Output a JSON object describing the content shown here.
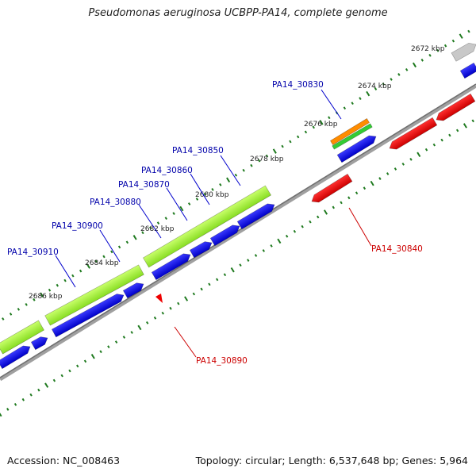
{
  "title": "Pseudomonas aeruginosa UCBPP-PA14, complete genome",
  "footer": {
    "accession": "Accession: NC_008463",
    "topology": "Topology: circular; Length: 6,537,648 bp; Genes: 5,964"
  },
  "colors": {
    "backbone": "#808080",
    "forward_gene": "#0000ee",
    "reverse_gene": "#ee0000",
    "cds_bar": "#99ee33",
    "tick": "#1f7a1f",
    "label_forward": "#0000aa",
    "label_reverse": "#cc0000",
    "orange_bar": "#ff8c00",
    "grey_block": "#c8c8c8"
  },
  "kbp_labels": [
    "2672 kbp",
    "2674 kbp",
    "2676 kbp",
    "2678 kbp",
    "2680 kbp",
    "2682 kbp",
    "2684 kbp",
    "2686 kbp"
  ],
  "gene_labels_forward": [
    "PA14_30830",
    "PA14_30850",
    "PA14_30860",
    "PA14_30870",
    "PA14_30880",
    "PA14_30900",
    "PA14_30910"
  ],
  "gene_labels_reverse": [
    "PA14_30840",
    "PA14_30890"
  ]
}
